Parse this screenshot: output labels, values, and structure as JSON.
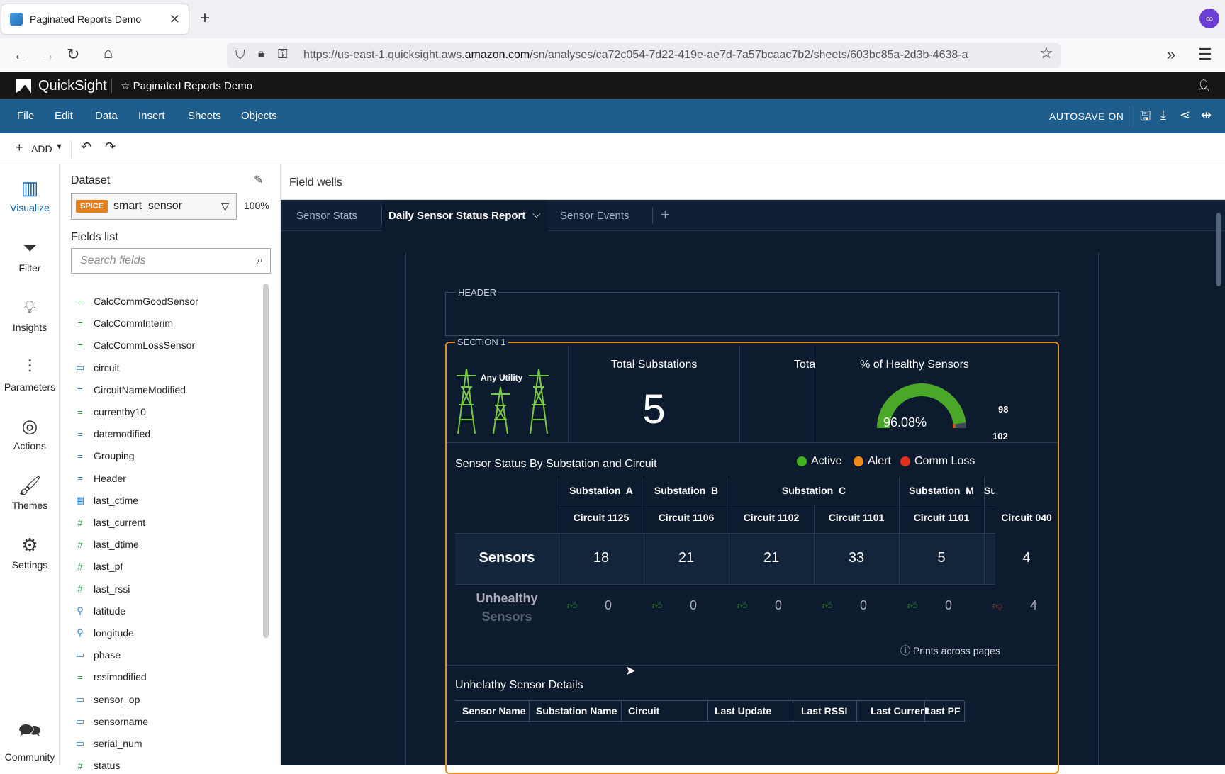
{
  "browser": {
    "tab_title": "Paginated Reports Demo",
    "url_prefix": "https://us-east-1.quicksight.aws.",
    "url_domain": "amazon.com",
    "url_path": "/sn/analyses/ca72c054-7d22-419e-ae7d-7a57bcaac7b2/sheets/603bc85a-2d3b-4638-a"
  },
  "app": {
    "brand": "QuickSight",
    "analysis_title": "Paginated Reports Demo",
    "menu": [
      "File",
      "Edit",
      "Data",
      "Insert",
      "Sheets",
      "Objects"
    ],
    "autosave": "AUTOSAVE ON",
    "add_label": "ADD"
  },
  "rail": [
    "Visualize",
    "Filter",
    "Insights",
    "Parameters",
    "Actions",
    "Themes",
    "Settings",
    "Community"
  ],
  "panel": {
    "dataset_label": "Dataset",
    "spice_badge": "SPICE",
    "dataset_name": "smart_sensor",
    "dataset_pct": "100%",
    "fields_label": "Fields list",
    "search_placeholder": "Search fields",
    "fields": [
      {
        "name": "CalcCommGoodSensor",
        "icon": "="
      },
      {
        "name": "CalcCommInterim",
        "icon": "="
      },
      {
        "name": "CalcCommLossSensor",
        "icon": "="
      },
      {
        "name": "circuit",
        "icon": "▭"
      },
      {
        "name": "CircuitNameModified",
        "icon": "="
      },
      {
        "name": "currentby10",
        "icon": "="
      },
      {
        "name": "datemodified",
        "icon": "="
      },
      {
        "name": "Grouping",
        "icon": "="
      },
      {
        "name": "Header",
        "icon": "="
      },
      {
        "name": "last_ctime",
        "icon": "▦"
      },
      {
        "name": "last_current",
        "icon": "#"
      },
      {
        "name": "last_dtime",
        "icon": "#"
      },
      {
        "name": "last_pf",
        "icon": "#"
      },
      {
        "name": "last_rssi",
        "icon": "#"
      },
      {
        "name": "latitude",
        "icon": "⚲"
      },
      {
        "name": "longitude",
        "icon": "⚲"
      },
      {
        "name": "phase",
        "icon": "▭"
      },
      {
        "name": "rssimodified",
        "icon": "="
      },
      {
        "name": "sensor_op",
        "icon": "▭"
      },
      {
        "name": "sensorname",
        "icon": "▭"
      },
      {
        "name": "serial_num",
        "icon": "▭"
      },
      {
        "name": "status",
        "icon": "#"
      }
    ]
  },
  "main": {
    "field_wells": "Field wells",
    "sheets": [
      "Sensor Stats",
      "Daily Sensor Status Report",
      "Sensor Events"
    ],
    "header_label": "HEADER",
    "section_label": "SECTION 1",
    "logo_text": "Any Utility",
    "kpi_substations_title": "Total Substations",
    "kpi_substations_value": "5",
    "kpi_truncated_title": "Tota",
    "kpi_healthy_title": "% of Healthy Sensors",
    "gauge_value": "96.08%",
    "gauge_target": "98",
    "gauge_max": "102",
    "gauge_fill": 0.9608,
    "status_title": "Sensor Status By Substation and Circuit",
    "legend": [
      {
        "label": "Active",
        "color": "#3fb21f"
      },
      {
        "label": "Alert",
        "color": "#ef8a1a"
      },
      {
        "label": "Comm Loss",
        "color": "#e0301e"
      }
    ],
    "substations": [
      "Substation  A",
      "Substation  B",
      "Substation  C",
      "Substation  M",
      "Substation"
    ],
    "circuits": [
      "Circuit 1125",
      "Circuit 1106",
      "Circuit 1102",
      "Circuit 1101",
      "Circuit 1101",
      "Circuit 040"
    ],
    "row_sensors_label": "Sensors",
    "sensors": [
      "18",
      "21",
      "21",
      "33",
      "5",
      "4"
    ],
    "row_unhealthy_label1": "Unhealthy",
    "row_unhealthy_label2": "Sensors",
    "unhealthy": [
      "0",
      "0",
      "0",
      "0",
      "0",
      "4"
    ],
    "prints_note": "Prints across pages",
    "details_title": "Unhelathy Sensor Details",
    "details_columns": [
      "Sensor Name",
      "Substation Name",
      "Circuit",
      "Last Update",
      "Last RSSI",
      "Last Current",
      "Last PF"
    ]
  }
}
